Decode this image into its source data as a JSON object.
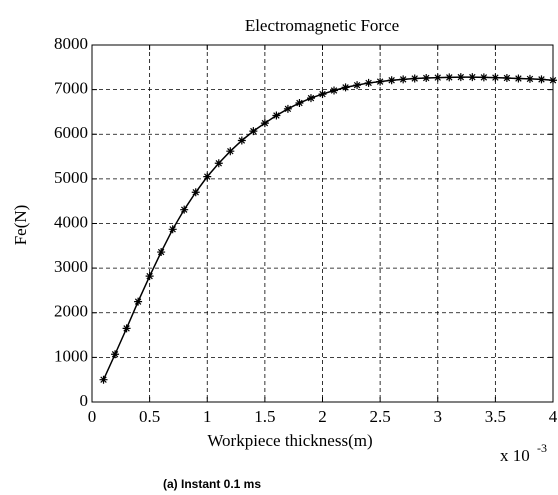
{
  "chart_data": {
    "type": "line",
    "title": "Electromagnetic Force",
    "x_label": "Workpiece thickness(m)",
    "y_label": "Fe(N)",
    "x_multiplier": "x 10",
    "x_multiplier_exponent": "-3",
    "caption": "(a) Instant 0.1 ms",
    "x": [
      0.1,
      0.2,
      0.3,
      0.4,
      0.5,
      0.6,
      0.7,
      0.8,
      0.9,
      1.0,
      1.1,
      1.2,
      1.3,
      1.4,
      1.5,
      1.6,
      1.7,
      1.8,
      1.9,
      2.0,
      2.1,
      2.2,
      2.3,
      2.4,
      2.5,
      2.6,
      2.7,
      2.8,
      2.9,
      3.0,
      3.1,
      3.2,
      3.3,
      3.4,
      3.5,
      3.6,
      3.7,
      3.8,
      3.9,
      4.0
    ],
    "series": [
      {
        "color": "#000000",
        "values": [
          500,
          1070,
          1650,
          2250,
          2820,
          3360,
          3870,
          4310,
          4700,
          5050,
          5350,
          5620,
          5860,
          6070,
          6250,
          6420,
          6570,
          6700,
          6810,
          6900,
          6980,
          7050,
          7100,
          7150,
          7180,
          7210,
          7230,
          7250,
          7260,
          7270,
          7275,
          7280,
          7280,
          7275,
          7270,
          7260,
          7250,
          7240,
          7230,
          7210
        ]
      }
    ],
    "xlim": [
      0,
      4
    ],
    "xticks": [
      0,
      0.5,
      1,
      1.5,
      2,
      2.5,
      3,
      3.5,
      4
    ],
    "ylim": [
      0,
      8000
    ],
    "yticks": [
      0,
      1000,
      2000,
      3000,
      4000,
      5000,
      6000,
      7000,
      8000
    ],
    "grid": true
  }
}
